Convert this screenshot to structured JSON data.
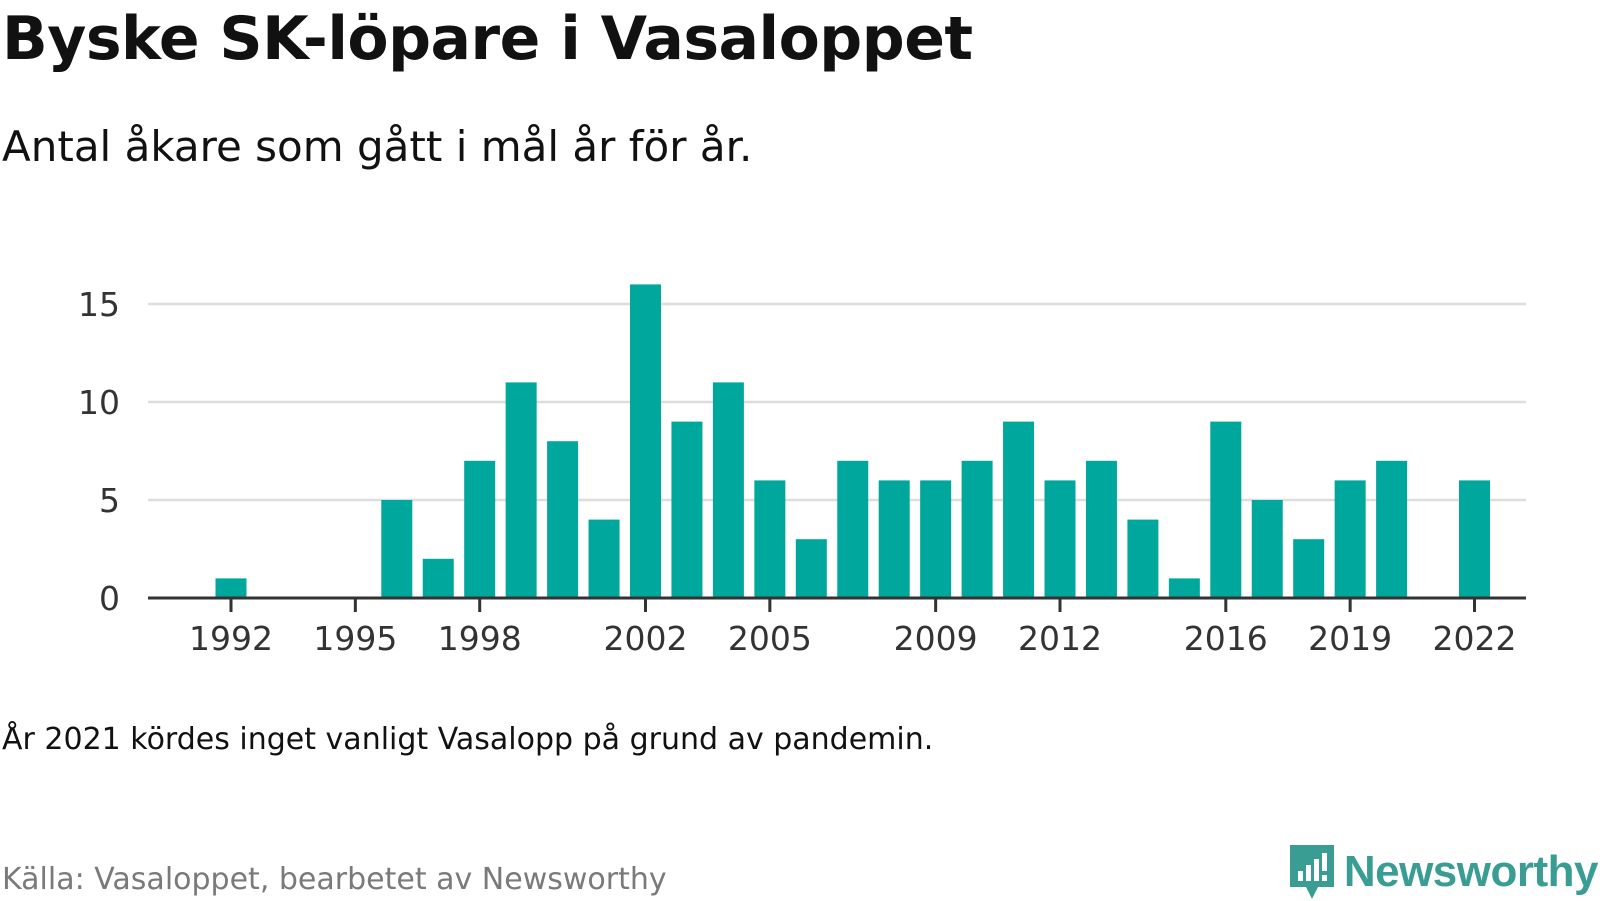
{
  "header": {
    "title": "Byske SK-löpare i Vasaloppet",
    "subtitle": "Antal åkare som gått i mål år för år."
  },
  "footer": {
    "note": "År 2021 kördes inget vanligt Vasalopp på grund av pandemin.",
    "source": "Källa: Vasaloppet, bearbetet av Newsworthy",
    "brand": "Newsworthy"
  },
  "colors": {
    "bar": "#00A79D",
    "grid": "#dddddd",
    "axis": "#333333",
    "brand": "#3a9d94"
  },
  "icons": {
    "logo": "newsworthy-logo-icon"
  },
  "chart_data": {
    "type": "bar",
    "x": [
      1992,
      1993,
      1994,
      1995,
      1996,
      1997,
      1998,
      1999,
      2000,
      2001,
      2002,
      2003,
      2004,
      2005,
      2006,
      2007,
      2008,
      2009,
      2010,
      2011,
      2012,
      2013,
      2014,
      2015,
      2016,
      2017,
      2018,
      2019,
      2020,
      2021,
      2022
    ],
    "values": [
      1,
      0,
      0,
      0,
      5,
      2,
      7,
      11,
      8,
      4,
      16,
      9,
      11,
      6,
      3,
      7,
      6,
      6,
      7,
      9,
      6,
      7,
      4,
      1,
      9,
      5,
      3,
      6,
      7,
      0,
      6
    ],
    "xticks": [
      "1992",
      "1995",
      "1998",
      "2002",
      "2005",
      "2009",
      "2012",
      "2016",
      "2019",
      "2022"
    ],
    "yticks": [
      "0",
      "5",
      "10",
      "15"
    ],
    "ylim": [
      0,
      16
    ],
    "xlim": [
      1990,
      2024
    ],
    "grid": true,
    "legend": "none"
  }
}
